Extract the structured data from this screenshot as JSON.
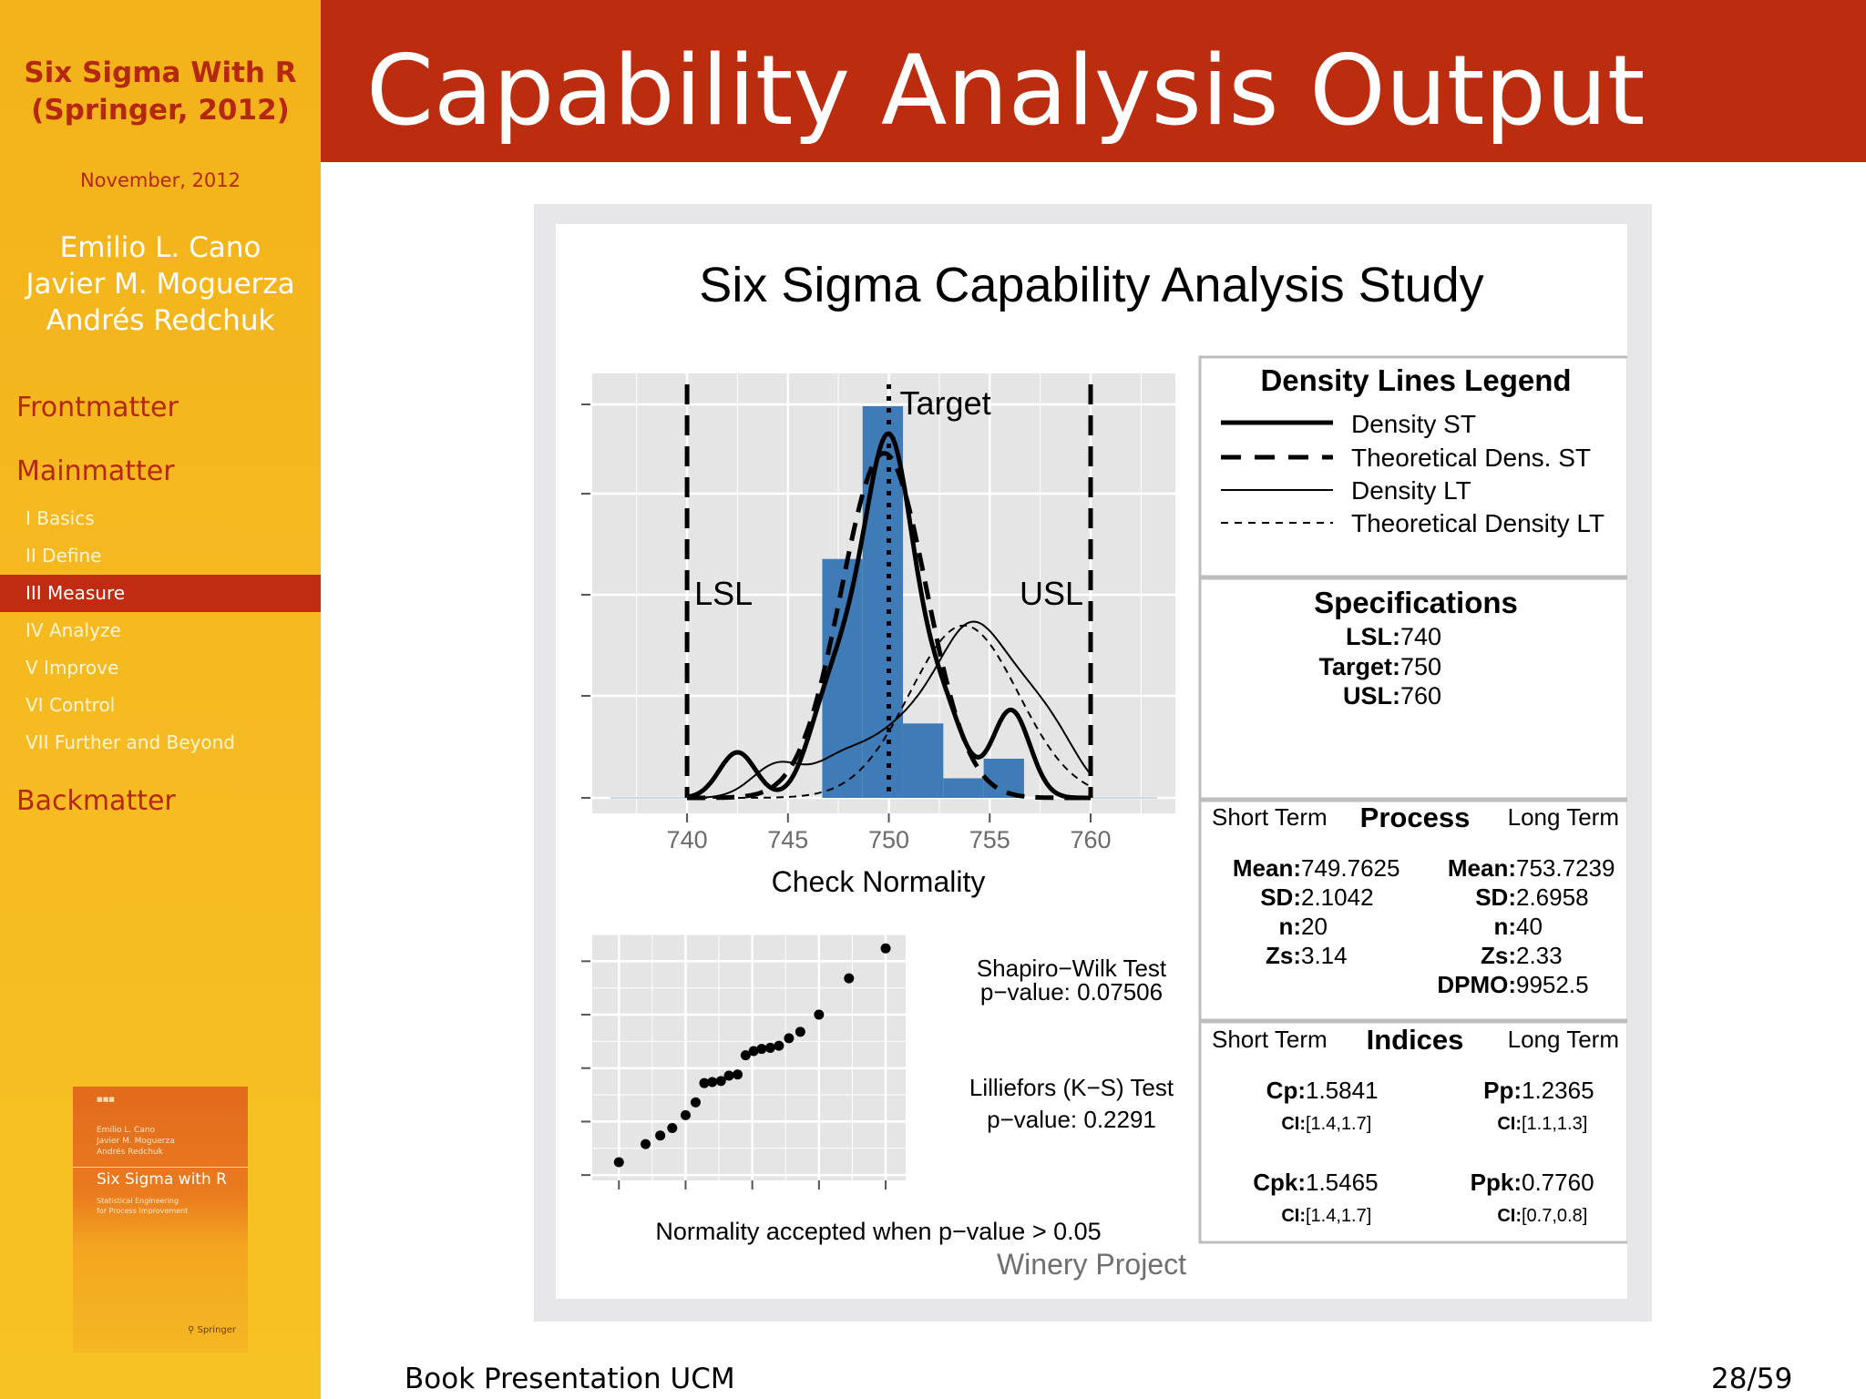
{
  "sidebar": {
    "book_title_1": "Six Sigma With R",
    "book_title_2": "(Springer, 2012)",
    "date": "November, 2012",
    "authors": [
      "Emilio L. Cano",
      "Javier M. Moguerza",
      "Andrés Redchuk"
    ],
    "sections": [
      "Frontmatter",
      "Mainmatter",
      "Backmatter"
    ],
    "subsections": [
      "I Basics",
      "II Define",
      "III Measure",
      "IV Analyze",
      "V Improve",
      "VI Control",
      "VII Further and Beyond"
    ],
    "active_subsection": "III Measure",
    "cover": {
      "authors": [
        "Emilio L. Cano",
        "Javier M. Moguerza",
        "Andrés Redchuk"
      ],
      "title": "Six Sigma with R",
      "subtitle": [
        "Statistical Engineering",
        "for Process Improvement"
      ]
    }
  },
  "header": {
    "title": "Capability Analysis Output"
  },
  "footer": {
    "left": "Book Presentation UCM",
    "page": "28/59"
  },
  "colors": {
    "accent_red": "#bc2d0f",
    "sidebar_yellow": "#f6bb22",
    "bar_blue": "#3f7bb7",
    "panel_grey": "#e5e5e5"
  },
  "figure": {
    "title": "Six Sigma Capability Analysis Study",
    "subtitle": "Winery Project",
    "plot_labels": {
      "target": "Target",
      "lsl": "LSL",
      "usl": "USL"
    },
    "normality": {
      "title": "Check Normality",
      "sw_title": "Shapiro−Wilk Test",
      "sw_pvalue": "p−value:  0.07506",
      "lf_title": "Lilliefors (K−S) Test",
      "lf_pvalue": "p−value:  0.2291",
      "note": "Normality accepted when p−value > 0.05"
    },
    "legend": {
      "title": "Density Lines Legend",
      "items": [
        "Density ST",
        "Theoretical Dens. ST",
        "Density LT",
        "Theoretical Density LT"
      ]
    },
    "specifications": {
      "title": "Specifications",
      "rows": [
        {
          "key": "LSL:",
          "value": " 740"
        },
        {
          "key": "Target:",
          "value": " 750"
        },
        {
          "key": "USL:",
          "value": " 760"
        }
      ]
    },
    "process": {
      "title": "Process",
      "short_label": "Short Term",
      "long_label": "Long Term",
      "short": [
        {
          "key": "Mean:",
          "value": " 749.7625"
        },
        {
          "key": "SD:",
          "value": " 2.1042"
        },
        {
          "key": "n:",
          "value": " 20"
        },
        {
          "key": "Zs:",
          "value": " 3.14"
        }
      ],
      "long": [
        {
          "key": "Mean:",
          "value": " 753.7239"
        },
        {
          "key": "SD:",
          "value": " 2.6958"
        },
        {
          "key": "n:",
          "value": " 40"
        },
        {
          "key": "Zs:",
          "value": " 2.33"
        },
        {
          "key": "DPMO:",
          "value": " 9952.5"
        }
      ]
    },
    "indices": {
      "title": "Indices",
      "short_label": "Short Term",
      "long_label": "Long Term",
      "cp": {
        "label": "Cp:",
        "value": " 1.5841",
        "ci": " [1.4,1.7]"
      },
      "cpk": {
        "label": "Cpk:",
        "value": " 1.5465",
        "ci": " [1.4,1.7]"
      },
      "pp": {
        "label": "Pp:",
        "value": " 1.2365",
        "ci": " [1.1,1.3]"
      },
      "ppk": {
        "label": "Ppk:",
        "value": " 0.7760",
        "ci": " [0.7,0.8]"
      },
      "ci_label": "CI:"
    }
  },
  "chart_data": [
    {
      "type": "bar",
      "description_title": "",
      "xlabel": "",
      "ylabel": "",
      "x_ticks": [
        740,
        745,
        750,
        755,
        760
      ],
      "xlim": [
        735.3,
        764.2
      ],
      "bins": [
        {
          "x0": 746.7,
          "x1": 748.7,
          "rel_height": 0.61
        },
        {
          "x0": 748.7,
          "x1": 750.7,
          "rel_height": 1.0
        },
        {
          "x0": 750.7,
          "x1": 752.7,
          "rel_height": 0.19
        },
        {
          "x0": 752.7,
          "x1": 754.7,
          "rel_height": 0.05
        },
        {
          "x0": 754.7,
          "x1": 756.7,
          "rel_height": 0.1
        }
      ],
      "spec_lines": {
        "LSL": 740,
        "Target": 750,
        "USL": 760
      },
      "density_short": {
        "mean": 749.7625,
        "sd": 2.1042
      },
      "density_long": {
        "mean": 753.7239,
        "sd": 2.6958
      }
    },
    {
      "type": "scatter",
      "title": "",
      "xlabel": "",
      "ylabel": "",
      "x": [
        -2.0,
        -1.6,
        -1.38,
        -1.2,
        -1.0,
        -0.85,
        -0.72,
        -0.6,
        -0.47,
        -0.35,
        -0.22,
        -0.1,
        0.02,
        0.14,
        0.27,
        0.4,
        0.55,
        0.72,
        1.0,
        1.45,
        2.0
      ],
      "y": [
        741.2,
        742.9,
        743.7,
        744.4,
        745.6,
        746.8,
        748.6,
        748.7,
        748.8,
        749.3,
        749.4,
        751.2,
        751.6,
        751.8,
        751.9,
        752.1,
        752.8,
        753.4,
        755.0,
        758.4,
        761.2
      ]
    }
  ]
}
